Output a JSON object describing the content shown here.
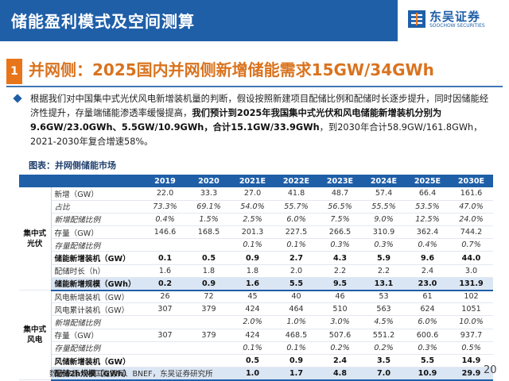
{
  "banner": {
    "title": "储能盈利模式及空间测算",
    "logo_cn": "东吴证券",
    "logo_en": "SOOCHOW SECURITIES"
  },
  "headline": {
    "number": "1",
    "text": "并网侧：2025国内并网侧新增储能需求15GW/34GWh"
  },
  "paragraph": {
    "part1": "根据我们对中国集中式光伏风电新增装机量的判断，假设按照新建项目配储比例和配储时长逐步提升，同时因储能经济性提升，存量端储能渗透率缓慢提高，",
    "part2": "我们预计到2025年我国集中式光伏和风电储能新增装机分别为9.6GW/23.0GWh、5.5GW/10.9GWh，合计15.1GW/33.9GWh",
    "part3": "，到2030年合计58.9GW/161.8GWh，2021-2030年复合增速58%。"
  },
  "table": {
    "caption": "图表：并网侧储能市场",
    "columns": [
      "2019",
      "2020",
      "2021E",
      "2022E",
      "2023E",
      "2024E",
      "2025E",
      "2030E"
    ],
    "groups": [
      {
        "label_line1": "集中式",
        "label_line2": "光伏",
        "rows": [
          {
            "label": "新增（GW）",
            "style": "",
            "values": [
              "22.0",
              "33.3",
              "27.0",
              "41.8",
              "48.7",
              "57.4",
              "66.4",
              "161.6"
            ]
          },
          {
            "label": "占比",
            "style": "it",
            "values": [
              "73.3%",
              "69.1%",
              "54.0%",
              "55.7%",
              "56.5%",
              "55.5%",
              "53.5%",
              "47.0%"
            ]
          },
          {
            "label": "新增配储比例",
            "style": "it",
            "values": [
              "0.4%",
              "1.5%",
              "2.5%",
              "6.0%",
              "7.5%",
              "9.0%",
              "12.5%",
              "24.0%"
            ]
          },
          {
            "label": "存量（GW）",
            "style": "",
            "values": [
              "146.6",
              "168.5",
              "201.3",
              "227.5",
              "266.5",
              "310.9",
              "362.4",
              "744.2"
            ]
          },
          {
            "label": "存量配储比例",
            "style": "it",
            "values": [
              "",
              "",
              "0.1%",
              "0.1%",
              "0.3%",
              "0.3%",
              "0.4%",
              "0.7%"
            ]
          },
          {
            "label": "储能新增装机（GW）",
            "style": "bd",
            "values": [
              "0.1",
              "0.5",
              "0.9",
              "2.7",
              "4.3",
              "5.9",
              "9.6",
              "44.0"
            ]
          },
          {
            "label": "配储时长（h）",
            "style": "",
            "values": [
              "1.6",
              "1.8",
              "1.8",
              "2.0",
              "2.2",
              "2.2",
              "2.4",
              "3.0"
            ]
          },
          {
            "label": "储能新增规模（GWh）",
            "style": "bd hl sep",
            "values": [
              "0.2",
              "0.9",
              "1.6",
              "5.5",
              "9.5",
              "13.1",
              "23.0",
              "131.9"
            ]
          }
        ]
      },
      {
        "label_line1": "集中式",
        "label_line2": "风电",
        "rows": [
          {
            "label": "风电新增装机（GW）",
            "style": "",
            "values": [
              "26",
              "72",
              "45",
              "40",
              "46",
              "53",
              "61",
              "102"
            ]
          },
          {
            "label": "风电累计装机（GW）",
            "style": "",
            "values": [
              "307",
              "379",
              "424",
              "464",
              "510",
              "563",
              "624",
              "1051"
            ]
          },
          {
            "label": "新增配储比例",
            "style": "it",
            "values": [
              "",
              "",
              "2.0%",
              "1.0%",
              "3.0%",
              "4.5%",
              "6.0%",
              "10.0%"
            ]
          },
          {
            "label": "存量（GW）",
            "style": "",
            "values": [
              "307",
              "379",
              "424",
              "468.5",
              "507.6",
              "551.2",
              "600.6",
              "937.7"
            ]
          },
          {
            "label": "存量配储比例",
            "style": "it",
            "values": [
              "",
              "",
              "0.1%",
              "0.1%",
              "0.2%",
              "0.2%",
              "0.3%",
              "0.5%"
            ]
          },
          {
            "label": "风储新增装机（GW）",
            "style": "bd",
            "values": [
              "",
              "",
              "0.5",
              "0.9",
              "2.4",
              "3.5",
              "5.5",
              "14.9"
            ]
          },
          {
            "label": "配储2h规模（GWh）",
            "style": "bd hl last",
            "values": [
              "",
              "",
              "1.0",
              "1.7",
              "4.8",
              "7.0",
              "10.9",
              "29.9"
            ]
          }
        ]
      }
    ]
  },
  "footer": {
    "source": "数据来源：中国能源网、BNEF，东吴证券研究所",
    "page": "20"
  },
  "colors": {
    "brand_blue": "#1f5fa8",
    "accent_orange": "#d9731f",
    "highlight_row": "#dbe6f4"
  }
}
